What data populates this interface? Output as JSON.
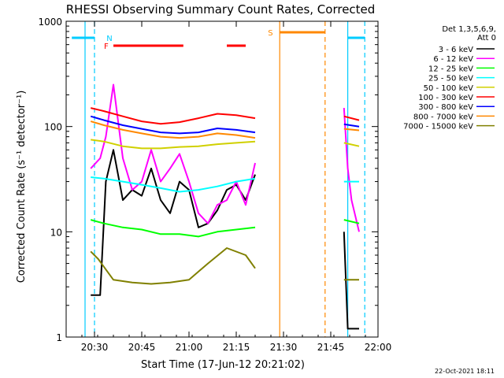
{
  "chart_data": {
    "type": "line",
    "title": "RHESSI Observing Summary Count Rates, Corrected",
    "xlabel": "Start Time (17-Jun-12 20:21:02)",
    "ylabel": "Corrected Count Rate (s⁻¹ detector⁻¹)",
    "y_scale": "log",
    "ylim": [
      1,
      1000
    ],
    "xlim_minutes": [
      20.35,
      22.0
    ],
    "x_ticks": [
      {
        "v": 20.5,
        "label": "20:30"
      },
      {
        "v": 20.75,
        "label": "20:45"
      },
      {
        "v": 21.0,
        "label": "21:00"
      },
      {
        "v": 21.25,
        "label": "21:15"
      },
      {
        "v": 21.5,
        "label": "21:30"
      },
      {
        "v": 21.75,
        "label": "21:45"
      },
      {
        "v": 22.0,
        "label": "22:00"
      }
    ],
    "y_ticks": [
      {
        "v": 1,
        "label": "1"
      },
      {
        "v": 10,
        "label": "10"
      },
      {
        "v": 100,
        "label": "100"
      },
      {
        "v": 1000,
        "label": "1000"
      }
    ],
    "legend_title": [
      "Det 1,3,5,6,9,",
      "Att 0"
    ],
    "series": [
      {
        "name": "3 - 6 keV",
        "color": "#000000",
        "x": [
          20.48,
          20.53,
          20.56,
          20.6,
          20.65,
          20.7,
          20.75,
          20.8,
          20.85,
          20.9,
          20.95,
          21.0,
          21.05,
          21.1,
          21.15,
          21.2,
          21.25,
          21.3,
          21.35,
          21.82,
          21.84,
          21.86,
          21.9
        ],
        "y": [
          2.5,
          2.5,
          30,
          60,
          20,
          25,
          22,
          40,
          20,
          15,
          30,
          25,
          11,
          12,
          16,
          25,
          28,
          20,
          35,
          10,
          1.2,
          1.2,
          1.2
        ]
      },
      {
        "name": "6 - 12 keV",
        "color": "#ff00ff",
        "x": [
          20.48,
          20.53,
          20.56,
          20.6,
          20.65,
          20.7,
          20.75,
          20.8,
          20.85,
          20.9,
          20.95,
          21.0,
          21.05,
          21.1,
          21.15,
          21.2,
          21.25,
          21.3,
          21.35,
          21.82,
          21.84,
          21.86,
          21.9
        ],
        "y": [
          40,
          50,
          80,
          250,
          50,
          25,
          30,
          60,
          30,
          40,
          55,
          30,
          15,
          12,
          18,
          20,
          30,
          18,
          45,
          150,
          40,
          20,
          10
        ]
      },
      {
        "name": "12 - 25 keV",
        "color": "#00ff00",
        "x": [
          20.48,
          20.55,
          20.65,
          20.75,
          20.85,
          20.95,
          21.05,
          21.15,
          21.25,
          21.35,
          21.82,
          21.9
        ],
        "y": [
          13,
          12,
          11,
          10.5,
          9.5,
          9.5,
          9,
          10,
          10.5,
          11,
          13,
          12
        ]
      },
      {
        "name": "25 - 50 keV",
        "color": "#00ffff",
        "x": [
          20.48,
          20.55,
          20.65,
          20.75,
          20.85,
          20.95,
          21.05,
          21.15,
          21.25,
          21.35,
          21.82,
          21.9
        ],
        "y": [
          33,
          32,
          30,
          28,
          26,
          24,
          25,
          27,
          30,
          32,
          30,
          30
        ]
      },
      {
        "name": "50 - 100 keV",
        "color": "#d0d000",
        "x": [
          20.48,
          20.55,
          20.65,
          20.75,
          20.85,
          20.95,
          21.05,
          21.15,
          21.25,
          21.35,
          21.82,
          21.9
        ],
        "y": [
          75,
          72,
          65,
          62,
          62,
          64,
          65,
          68,
          70,
          72,
          70,
          65
        ]
      },
      {
        "name": "100 - 300 keV",
        "color": "#ff0000",
        "x": [
          20.48,
          20.55,
          20.65,
          20.75,
          20.85,
          20.95,
          21.05,
          21.15,
          21.25,
          21.35,
          21.82,
          21.9
        ],
        "y": [
          150,
          140,
          125,
          112,
          106,
          110,
          120,
          132,
          128,
          120,
          125,
          115
        ]
      },
      {
        "name": "300 - 800 keV",
        "color": "#0000ff",
        "x": [
          20.48,
          20.55,
          20.65,
          20.75,
          20.85,
          20.95,
          21.05,
          21.15,
          21.25,
          21.35,
          21.82,
          21.9
        ],
        "y": [
          125,
          115,
          103,
          95,
          88,
          86,
          88,
          96,
          93,
          88,
          105,
          100
        ]
      },
      {
        "name": "800 - 7000 keV",
        "color": "#ff8800",
        "x": [
          20.48,
          20.55,
          20.65,
          20.75,
          20.85,
          20.95,
          21.05,
          21.15,
          21.25,
          21.35,
          21.82,
          21.9
        ],
        "y": [
          112,
          103,
          93,
          86,
          80,
          78,
          80,
          86,
          83,
          78,
          95,
          92
        ]
      },
      {
        "name": "7000 - 15000 keV",
        "color": "#808000",
        "x": [
          20.48,
          20.52,
          20.6,
          20.7,
          20.8,
          20.9,
          21.0,
          21.1,
          21.2,
          21.3,
          21.35,
          21.82,
          21.9
        ],
        "y": [
          6.5,
          5.5,
          3.5,
          3.3,
          3.2,
          3.3,
          3.5,
          5.0,
          7.0,
          6.0,
          4.5,
          3.5,
          3.5
        ]
      }
    ],
    "flags": [
      {
        "label": "F",
        "color": "#ff0000",
        "segments": [
          [
            20.6,
            20.97
          ],
          [
            21.2,
            21.3
          ]
        ]
      },
      {
        "label": "N",
        "color": "#00ccff",
        "segments": [
          [
            20.38,
            20.5
          ],
          [
            21.84,
            21.93
          ]
        ]
      },
      {
        "label": "S",
        "color": "#ff8800",
        "segments": [
          [
            21.48,
            21.72
          ]
        ]
      }
    ],
    "vertical_lines": [
      {
        "x": 20.5,
        "color": "#00ccff",
        "dashed": true
      },
      {
        "x": 21.48,
        "color": "#ff8800",
        "dashed": false
      },
      {
        "x": 21.72,
        "color": "#ff8800",
        "dashed": true
      },
      {
        "x": 20.45,
        "color": "#00ccff",
        "dashed": false
      },
      {
        "x": 21.84,
        "color": "#00ccff",
        "dashed": false
      },
      {
        "x": 21.93,
        "color": "#00ccff",
        "dashed": true
      }
    ],
    "footnote": "22-Oct-2021 18:11"
  }
}
